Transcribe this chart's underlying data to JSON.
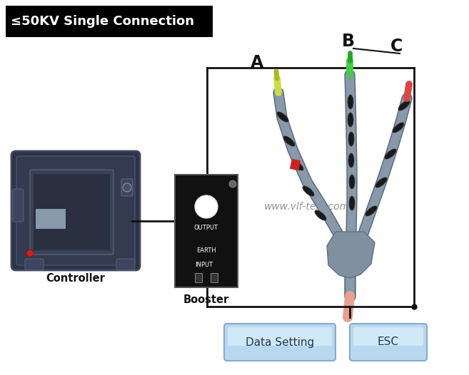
{
  "title": "≤50KV Single Connection",
  "watermark": "www.vlf-test.com",
  "label_A": "A",
  "label_B": "B",
  "label_C": "C",
  "label_controller": "Controller",
  "label_booster": "Booster",
  "label_output": "OUTPUT",
  "label_earth": "EARTH",
  "label_input": "INPUT",
  "btn1_text": "Data Setting",
  "btn2_text": "ESC",
  "bg_color": "#ffffff",
  "wire_color": "#111111",
  "booster_bg": "#111111",
  "booster_fg": "#ffffff",
  "controller_bg": "#2e3345",
  "cable_color": "#8899aa",
  "cable_dark": "#667788",
  "insulator_color": "#1a1a1a",
  "junction_color": "#8899aa",
  "fig_width": 6.57,
  "fig_height": 5.26,
  "dpi": 100
}
